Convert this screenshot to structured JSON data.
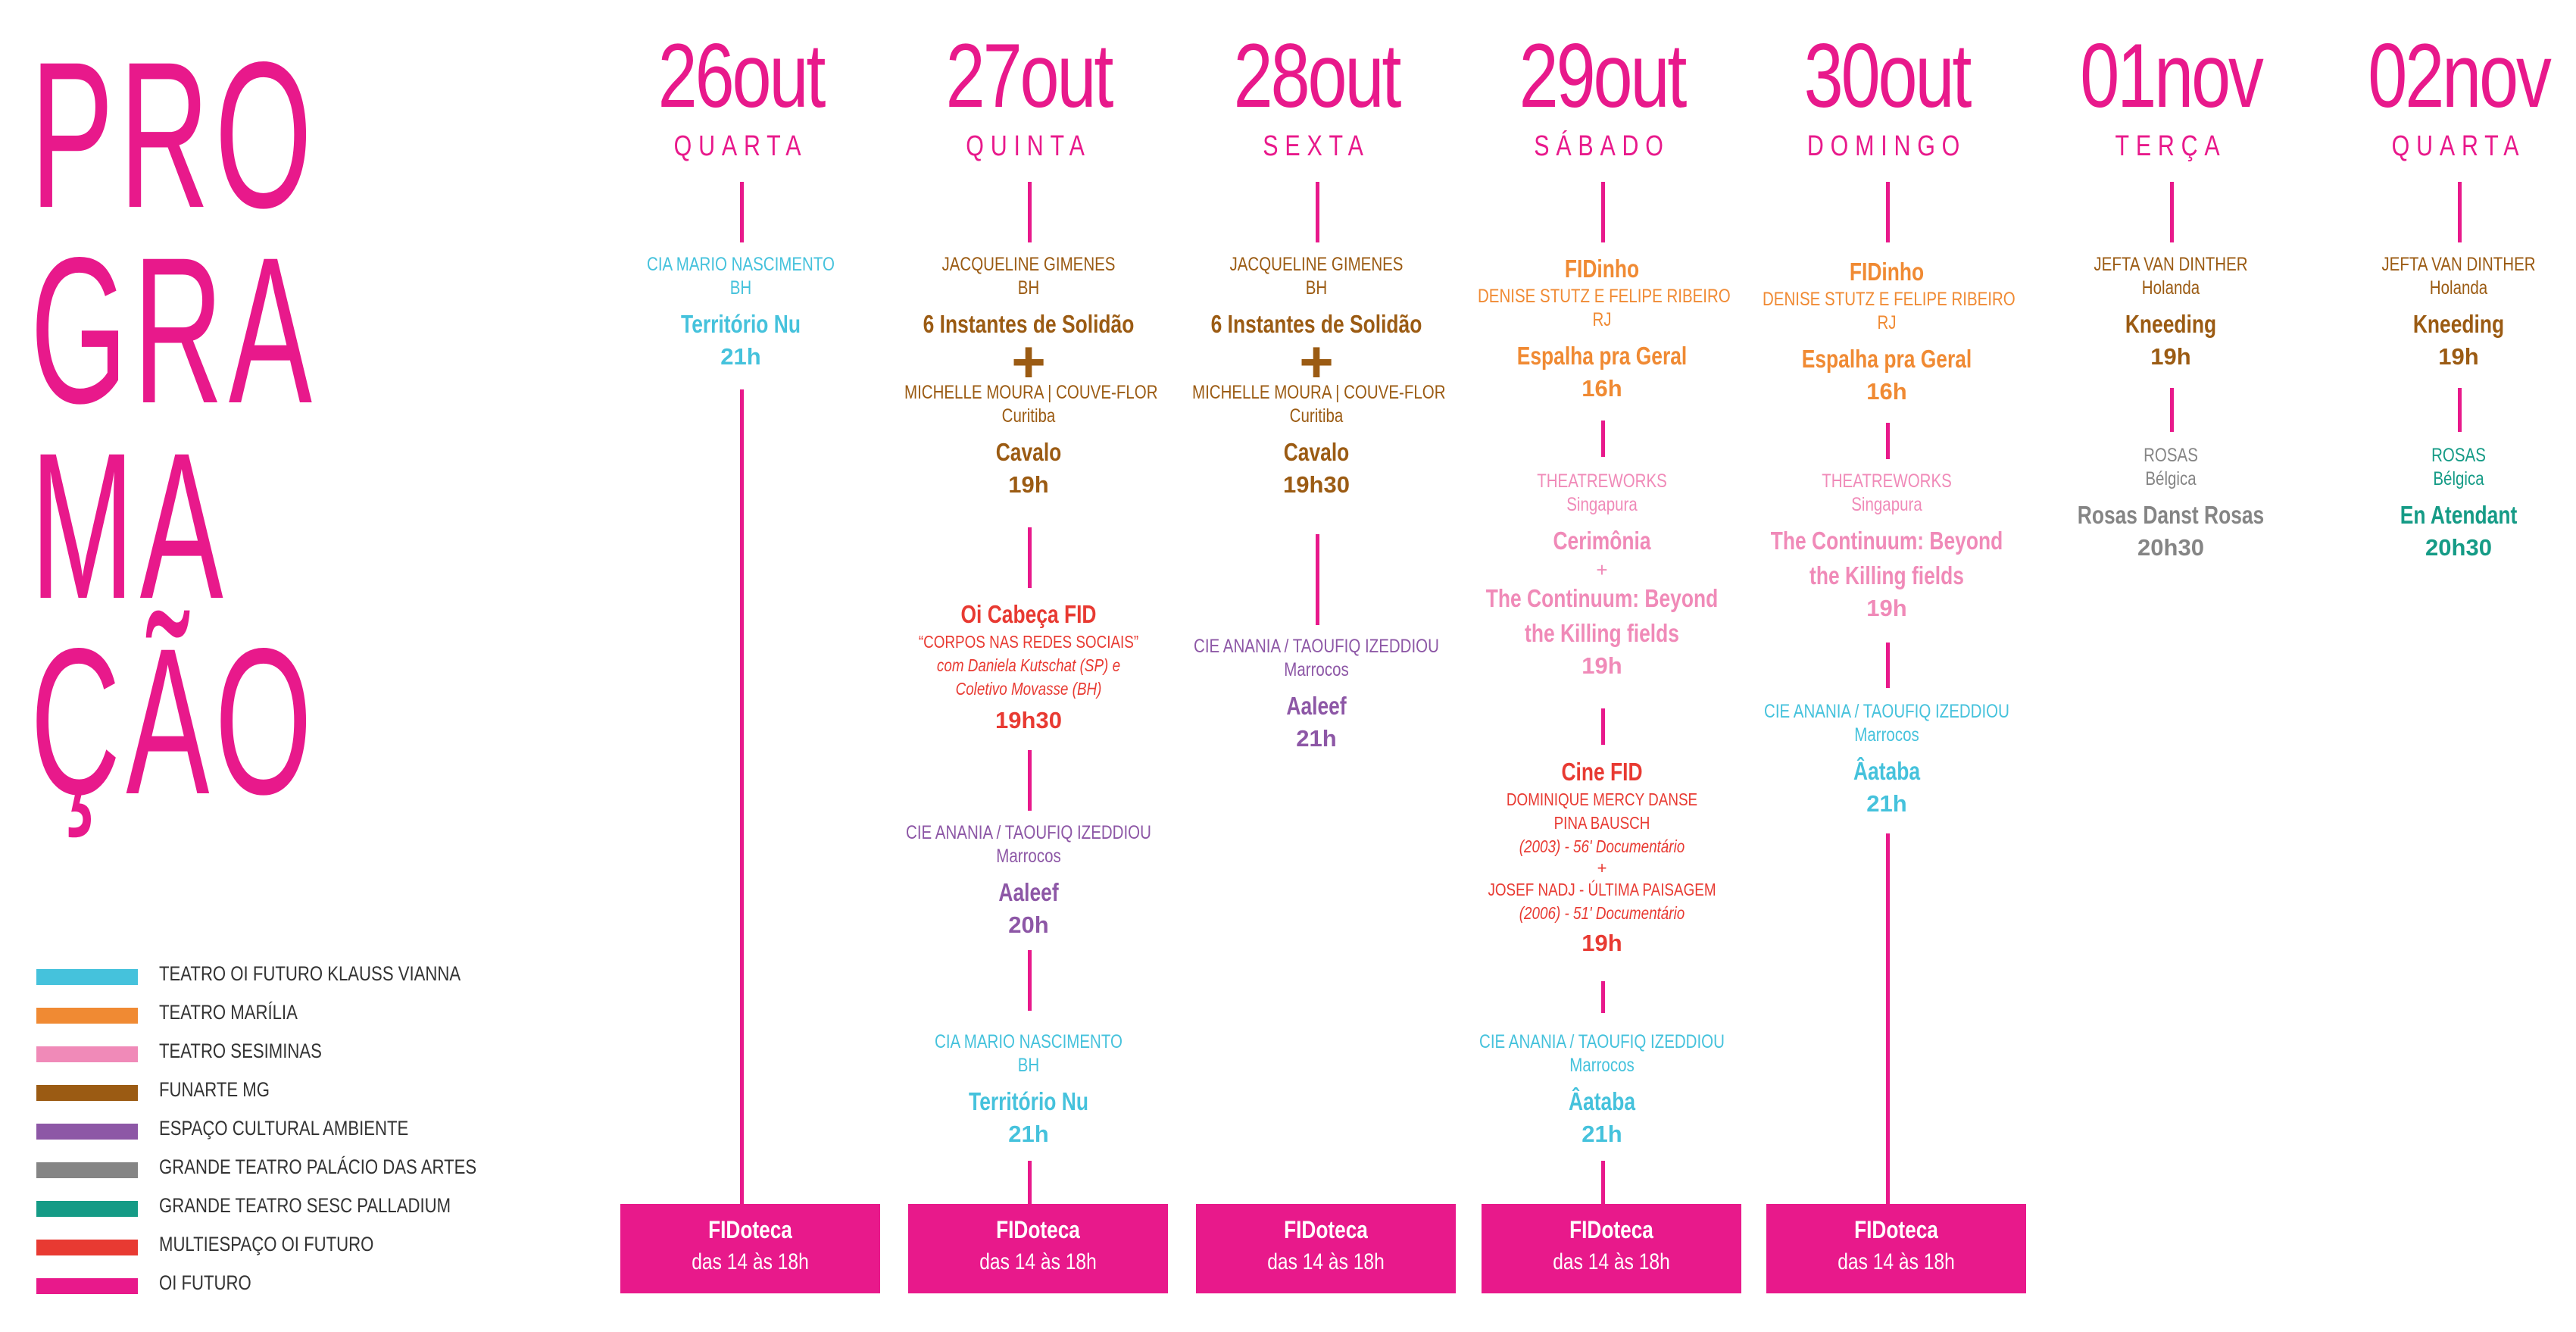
{
  "title": [
    "PRO",
    "GRA",
    "MA",
    "ÇÃO"
  ],
  "colors": {
    "accent": "#e8198b",
    "teatro_oi_futuro_klauss_vianna": "#45c2dc",
    "teatro_marilia": "#f08a33",
    "teatro_sesiminas": "#f08ab8",
    "funarte_mg": "#9b5b13",
    "espaco_cultural_ambiente": "#8d57a6",
    "grande_teatro_palacio_das_artes": "#858585",
    "grande_teatro_sesc_palladium": "#159b86",
    "multiespaco_oi_futuro": "#e83a32",
    "oi_futuro": "#e8198b"
  },
  "legend": [
    {
      "label": "TEATRO OI FUTURO KLAUSS VIANNA",
      "color": "#45c2dc"
    },
    {
      "label": "TEATRO MARÍLIA",
      "color": "#f08a33"
    },
    {
      "label": "TEATRO SESIMINAS",
      "color": "#f08ab8"
    },
    {
      "label": "FUNARTE MG",
      "color": "#9b5b13"
    },
    {
      "label": "ESPAÇO CULTURAL AMBIENTE",
      "color": "#8d57a6"
    },
    {
      "label": "GRANDE TEATRO PALÁCIO DAS ARTES",
      "color": "#858585"
    },
    {
      "label": "GRANDE TEATRO SESC PALLADIUM",
      "color": "#159b86"
    },
    {
      "label": "MULTIESPAÇO OI FUTURO",
      "color": "#e83a32"
    },
    {
      "label": "OI FUTURO",
      "color": "#e8198b"
    }
  ],
  "days": [
    {
      "date": "26out",
      "weekday": "QUARTA",
      "events": [
        {
          "artist": "CIA MARIO NASCIMENTO",
          "origin": "BH",
          "title": "Território Nu",
          "time": "21h",
          "color": "#45c2dc"
        }
      ],
      "fidoteca": {
        "title": "FIDoteca",
        "hours": "das 14 às 18h"
      }
    },
    {
      "date": "27out",
      "weekday": "QUINTA",
      "events": [
        {
          "artist": "JACQUELINE GIMENES",
          "origin": "BH",
          "title": "6 Instantes de Solidão",
          "plus": "+",
          "artist2": "MICHELLE MOURA | COUVE-FLOR",
          "origin2": "Curitiba",
          "title2": "Cavalo",
          "time": "19h",
          "color": "#9b5b13"
        },
        {
          "series": "Oi Cabeça FID",
          "line1": "“CORPOS NAS REDES SOCIAIS”",
          "line2": "com Daniela Kutschat (SP) e",
          "line3": "Coletivo Movasse (BH)",
          "time": "19h30",
          "color": "#e83a32"
        },
        {
          "artist": "CIE ANANIA / TAOUFIQ IZEDDIOU",
          "origin": "Marrocos",
          "title": "Aaleef",
          "time": "20h",
          "color": "#8d57a6"
        },
        {
          "artist": "CIA MARIO NASCIMENTO",
          "origin": "BH",
          "title": "Território Nu",
          "time": "21h",
          "color": "#45c2dc"
        }
      ],
      "fidoteca": {
        "title": "FIDoteca",
        "hours": "das 14 às 18h"
      }
    },
    {
      "date": "28out",
      "weekday": "SEXTA",
      "events": [
        {
          "artist": "JACQUELINE GIMENES",
          "origin": "BH",
          "title": "6 Instantes de Solidão",
          "plus": "+",
          "artist2": "MICHELLE MOURA | COUVE-FLOR",
          "origin2": "Curitiba",
          "title2": "Cavalo",
          "time": "19h30",
          "color": "#9b5b13"
        },
        {
          "artist": "CIE ANANIA / TAOUFIQ IZEDDIOU",
          "origin": "Marrocos",
          "title": "Aaleef",
          "time": "21h",
          "color": "#8d57a6"
        }
      ],
      "fidoteca": {
        "title": "FIDoteca",
        "hours": "das 14 às 18h"
      }
    },
    {
      "date": "29out",
      "weekday": "SÁBADO",
      "events": [
        {
          "series": "FIDinho",
          "artist": "DENISE STUTZ E FELIPE RIBEIRO",
          "origin": "RJ",
          "title": "Espalha pra Geral",
          "time": "16h",
          "color": "#f08a33"
        },
        {
          "artist": "THEATREWORKS",
          "origin": "Singapura",
          "title": "Cerimônia",
          "plus": "+",
          "title2": "The Continuum: Beyond",
          "title3": "the Killing fields",
          "time": "19h",
          "color": "#f08ab8"
        },
        {
          "series": "Cine FID",
          "line1": "DOMINIQUE MERCY DANSE",
          "line2": "PINA BAUSCH",
          "line3": "(2003) - 56' Documentário",
          "plus": "+",
          "line4": "JOSEF NADJ - ÚLTIMA PAISAGEM",
          "line5": "(2006) - 51' Documentário",
          "time": "19h",
          "color": "#e83a32"
        },
        {
          "artist": "CIE ANANIA / TAOUFIQ IZEDDIOU",
          "origin": "Marrocos",
          "title": "Âataba",
          "time": "21h",
          "color": "#45c2dc"
        }
      ],
      "fidoteca": {
        "title": "FIDoteca",
        "hours": "das 14 às 18h"
      }
    },
    {
      "date": "30out",
      "weekday": "DOMINGO",
      "events": [
        {
          "series": "FIDinho",
          "artist": "DENISE STUTZ E FELIPE RIBEIRO",
          "origin": "RJ",
          "title": "Espalha pra Geral",
          "time": "16h",
          "color": "#f08a33"
        },
        {
          "artist": "THEATREWORKS",
          "origin": "Singapura",
          "title": "The Continuum: Beyond",
          "title2": "the Killing fields",
          "time": "19h",
          "color": "#f08ab8"
        },
        {
          "artist": "CIE ANANIA / TAOUFIQ IZEDDIOU",
          "origin": "Marrocos",
          "title": "Âataba",
          "time": "21h",
          "color": "#45c2dc"
        }
      ],
      "fidoteca": {
        "title": "FIDoteca",
        "hours": "das 14 às 18h"
      }
    },
    {
      "date": "01nov",
      "weekday": "TERÇA",
      "events": [
        {
          "artist": "JEFTA VAN DINTHER",
          "origin": "Holanda",
          "title": "Kneeding",
          "time": "19h",
          "color": "#9b5b13"
        },
        {
          "artist": "ROSAS",
          "origin": "Bélgica",
          "title": "Rosas Danst Rosas",
          "time": "20h30",
          "color": "#858585"
        }
      ]
    },
    {
      "date": "02nov",
      "weekday": "QUARTA",
      "events": [
        {
          "artist": "JEFTA VAN DINTHER",
          "origin": "Holanda",
          "title": "Kneeding",
          "time": "19h",
          "color": "#9b5b13"
        },
        {
          "artist": "ROSAS",
          "origin": "Bélgica",
          "title": "En Atendant",
          "time": "20h30",
          "color": "#159b86"
        }
      ]
    }
  ]
}
